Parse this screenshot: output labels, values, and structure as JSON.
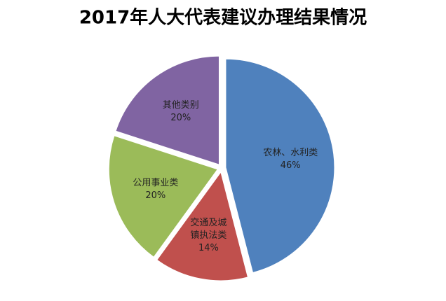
{
  "chart_data": {
    "type": "pie",
    "title": "2017年人大代表建议办理结果情况",
    "categories": [
      "农林、水利类",
      "交通及城镇执法类",
      "公用事业类",
      "其他类别"
    ],
    "values": [
      46,
      14,
      20,
      20
    ],
    "value_labels": [
      "46%",
      "14%",
      "20%",
      "20%"
    ],
    "colors": [
      "#4f81bd",
      "#c0504d",
      "#9bbb59",
      "#8064a2"
    ]
  }
}
